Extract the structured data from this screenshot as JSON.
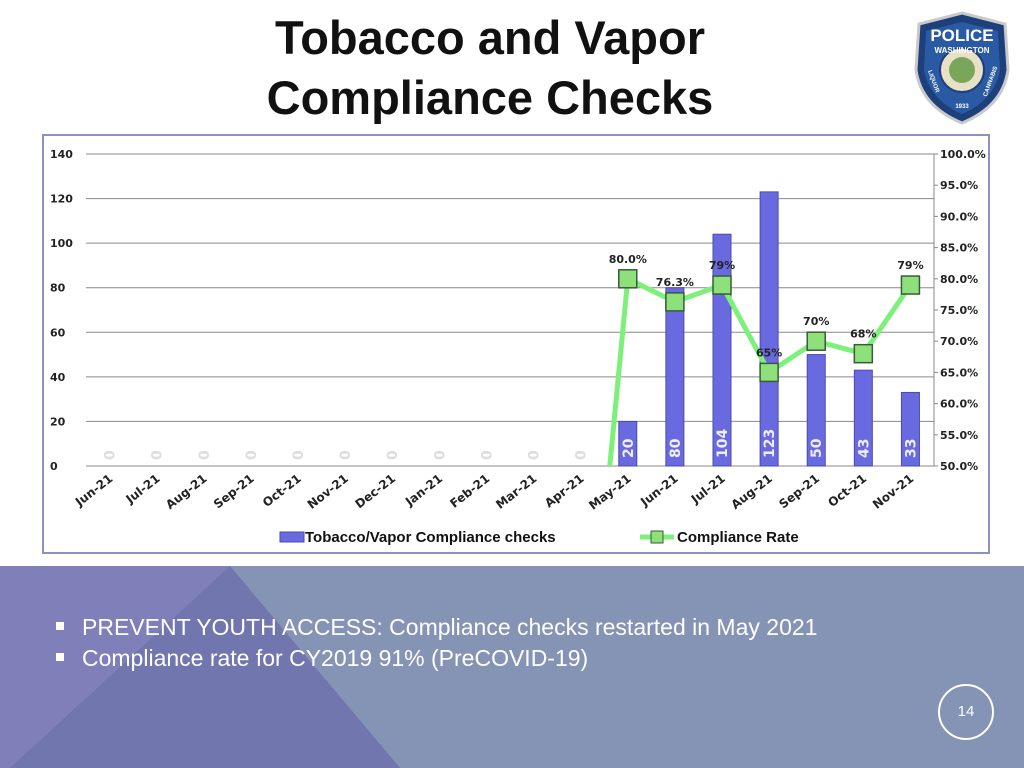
{
  "slide": {
    "title_line1": "Tobacco and Vapor",
    "title_line2": "Compliance Checks",
    "badge": {
      "icon": "police-badge-icon",
      "text_top": "POLICE",
      "text_arc": "WASHINGTON",
      "text_left": "LIQUOR",
      "text_right": "CANNABIS",
      "year": "1933"
    },
    "bullets": [
      "PREVENT YOUTH ACCESS: Compliance checks restarted in May 2021",
      "Compliance rate for CY2019  91% (PreCOVID-19)"
    ],
    "page_number": "14",
    "colors": {
      "bar": "#6a6ae0",
      "line": "#7df07a",
      "marker": "#8ee07a",
      "bottom_panel": "#8593b5"
    }
  },
  "chart_data": {
    "type": "bar",
    "categories": [
      "Jun-21",
      "Jul-21",
      "Aug-21",
      "Sep-21",
      "Oct-21",
      "Nov-21",
      "Dec-21",
      "Jan-21",
      "Feb-21",
      "Mar-21",
      "Apr-21",
      "May-21",
      "Jun-21",
      "Jul-21",
      "Aug-21",
      "Sep-21",
      "Oct-21",
      "Nov-21"
    ],
    "series": [
      {
        "name": "Tobacco/Vapor Compliance checks",
        "type": "bar",
        "axis": "left",
        "values": [
          0,
          0,
          0,
          0,
          0,
          0,
          0,
          0,
          0,
          0,
          0,
          20,
          80,
          104,
          123,
          50,
          43,
          33
        ],
        "labels": [
          "0",
          "0",
          "0",
          "0",
          "0",
          "0",
          "0",
          "0",
          "0",
          "0",
          "0",
          "20",
          "80",
          "104",
          "123",
          "50",
          "43",
          "33"
        ]
      },
      {
        "name": "Compliance Rate",
        "type": "line",
        "axis": "right",
        "values": [
          null,
          null,
          null,
          null,
          null,
          null,
          null,
          null,
          null,
          null,
          null,
          80.0,
          76.3,
          79,
          65,
          70,
          68,
          79
        ],
        "labels": [
          null,
          null,
          null,
          null,
          null,
          null,
          null,
          null,
          null,
          null,
          null,
          "80.0%",
          "76.3%",
          "79%",
          "65%",
          "70%",
          "68%",
          "79%"
        ]
      }
    ],
    "y_left": {
      "lim": [
        0,
        140
      ],
      "ticks": [
        "0",
        "20",
        "40",
        "60",
        "80",
        "100",
        "120",
        "140"
      ]
    },
    "y_right": {
      "lim": [
        50,
        100
      ],
      "ticks": [
        "50.0%",
        "55.0%",
        "60.0%",
        "65.0%",
        "70.0%",
        "75.0%",
        "80.0%",
        "85.0%",
        "90.0%",
        "95.0%",
        "100.0%"
      ]
    },
    "grid": true,
    "legend": "bottom"
  }
}
